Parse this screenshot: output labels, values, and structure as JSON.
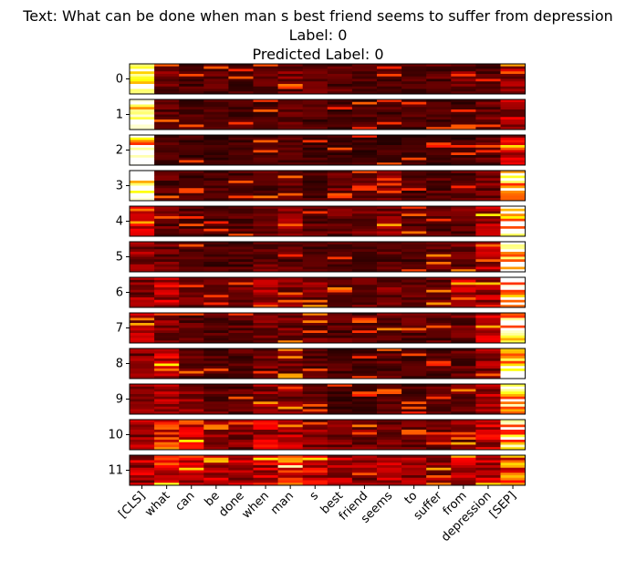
{
  "chart_data": {
    "type": "heatmap",
    "title_lines": [
      "Text: What can be done when man s best friend seems to suffer from depression",
      "Label: 0",
      "Predicted Label: 0"
    ],
    "layers": [
      "0",
      "1",
      "2",
      "3",
      "4",
      "5",
      "6",
      "7",
      "8",
      "9",
      "10",
      "11"
    ],
    "tokens": [
      "[CLS]",
      "what",
      "can",
      "be",
      "done",
      "when",
      "man",
      "s",
      "best",
      "friend",
      "seems",
      "to",
      "suffer",
      "from",
      "depression",
      "[SEP]"
    ],
    "colormap": "hot",
    "grid": false,
    "cells_per_layer": 12,
    "column_intensity": [
      [
        0.85,
        0.18,
        0.12,
        0.14,
        0.12,
        0.16,
        0.18,
        0.15,
        0.14,
        0.12,
        0.12,
        0.12,
        0.14,
        0.18,
        0.12,
        0.25
      ],
      [
        0.92,
        0.14,
        0.12,
        0.12,
        0.12,
        0.14,
        0.14,
        0.12,
        0.12,
        0.12,
        0.12,
        0.12,
        0.12,
        0.12,
        0.16,
        0.28
      ],
      [
        0.95,
        0.12,
        0.1,
        0.1,
        0.1,
        0.12,
        0.12,
        0.1,
        0.1,
        0.1,
        0.1,
        0.1,
        0.1,
        0.1,
        0.14,
        0.3
      ],
      [
        0.9,
        0.14,
        0.12,
        0.12,
        0.12,
        0.14,
        0.14,
        0.12,
        0.18,
        0.16,
        0.18,
        0.12,
        0.14,
        0.14,
        0.18,
        0.88
      ],
      [
        0.3,
        0.16,
        0.14,
        0.12,
        0.14,
        0.16,
        0.2,
        0.14,
        0.16,
        0.18,
        0.2,
        0.14,
        0.14,
        0.16,
        0.32,
        0.95
      ],
      [
        0.22,
        0.16,
        0.12,
        0.12,
        0.12,
        0.16,
        0.14,
        0.12,
        0.12,
        0.12,
        0.14,
        0.12,
        0.16,
        0.16,
        0.26,
        0.97
      ],
      [
        0.22,
        0.3,
        0.16,
        0.14,
        0.16,
        0.24,
        0.22,
        0.2,
        0.16,
        0.16,
        0.18,
        0.14,
        0.18,
        0.26,
        0.3,
        0.92
      ],
      [
        0.26,
        0.2,
        0.14,
        0.14,
        0.14,
        0.2,
        0.18,
        0.16,
        0.14,
        0.14,
        0.16,
        0.14,
        0.14,
        0.16,
        0.3,
        0.95
      ],
      [
        0.2,
        0.3,
        0.14,
        0.12,
        0.14,
        0.18,
        0.22,
        0.14,
        0.12,
        0.12,
        0.14,
        0.12,
        0.12,
        0.14,
        0.22,
        0.93
      ],
      [
        0.2,
        0.24,
        0.2,
        0.16,
        0.14,
        0.22,
        0.2,
        0.14,
        0.12,
        0.12,
        0.14,
        0.12,
        0.14,
        0.16,
        0.26,
        0.9
      ],
      [
        0.24,
        0.4,
        0.3,
        0.22,
        0.2,
        0.3,
        0.26,
        0.2,
        0.18,
        0.18,
        0.2,
        0.16,
        0.18,
        0.2,
        0.3,
        0.82
      ],
      [
        0.28,
        0.4,
        0.36,
        0.3,
        0.26,
        0.32,
        0.46,
        0.32,
        0.26,
        0.24,
        0.3,
        0.24,
        0.22,
        0.28,
        0.32,
        0.52
      ]
    ]
  }
}
